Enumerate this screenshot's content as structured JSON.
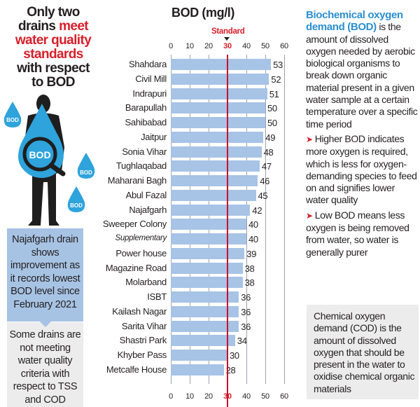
{
  "headline": {
    "line1": "Only two",
    "line2_a": "drains ",
    "line2_b": "meet",
    "line3": "water quality",
    "line4": "standards",
    "line5": "with respect",
    "line6": "to BOD"
  },
  "illustration": {
    "drop_label": "BOD",
    "icon": "person-with-magnifier-water-drop-icon"
  },
  "notes": {
    "blue": "Najafgarh drain shows improvement as it records lowest BOD level since February 2021",
    "grey": "Some drains are not meeting water quality criteria with respect to TSS and COD"
  },
  "chart_data": {
    "type": "bar",
    "orientation": "horizontal",
    "title": "BOD (mg/l)",
    "xlabel": "BOD (mg/l)",
    "ylabel": "",
    "xlim": [
      0,
      60
    ],
    "ticks": [
      "0",
      "10",
      "20",
      "30",
      "40",
      "50",
      "60"
    ],
    "grid": true,
    "annotations": [
      {
        "label": "Standard",
        "value": 30,
        "color": "#d71f2a"
      }
    ],
    "categories": [
      "Shahdara",
      "Civil Mill",
      "Indrapuri",
      "Barapullah",
      "Sahibabad",
      "Jaitpur",
      "Sonia Vihar",
      "Tughlaqabad",
      "Maharani Bagh",
      "Abul Fazal",
      "Najafgarh",
      "Sweeper Colony",
      "Supplementary",
      "Power house",
      "Magazine Road",
      "Molarband",
      "ISBT",
      "Kailash Nagar",
      "Sarita Vihar",
      "Shastri Park",
      "Khyber Pass",
      "Metcalfe House"
    ],
    "values": [
      53,
      52,
      51,
      50,
      50,
      49,
      48,
      47,
      46,
      45,
      42,
      40,
      40,
      39,
      38,
      38,
      36,
      36,
      36,
      34,
      30,
      28
    ],
    "bar_color": "#a7c3e6"
  },
  "side": {
    "bod_term": "Biochemical oxygen demand (BOD)",
    "bod_def": " is the amount of dissolved oxygen needed by aerobic biological organisms to break down organic material present in a given water sample at a certain temperature over a specific time period",
    "bullet1": "Higher BOD indicates more oxygen is required, which is less for oxygen-demanding species to feed on and signifies lower water quality",
    "bullet2": "Low BOD means less oxygen is being removed from water, so water is generally purer",
    "cod": "Chemical oxygen demand (COD) is the amount of dissolved oxygen that should be present in the water to oxidise chemical organic materials"
  },
  "colors": {
    "accent_red": "#d71f2a",
    "accent_blue": "#2a8fd0",
    "bar": "#a7c3e6",
    "note_blue": "#a7c3e4",
    "note_grey": "#ececec"
  }
}
